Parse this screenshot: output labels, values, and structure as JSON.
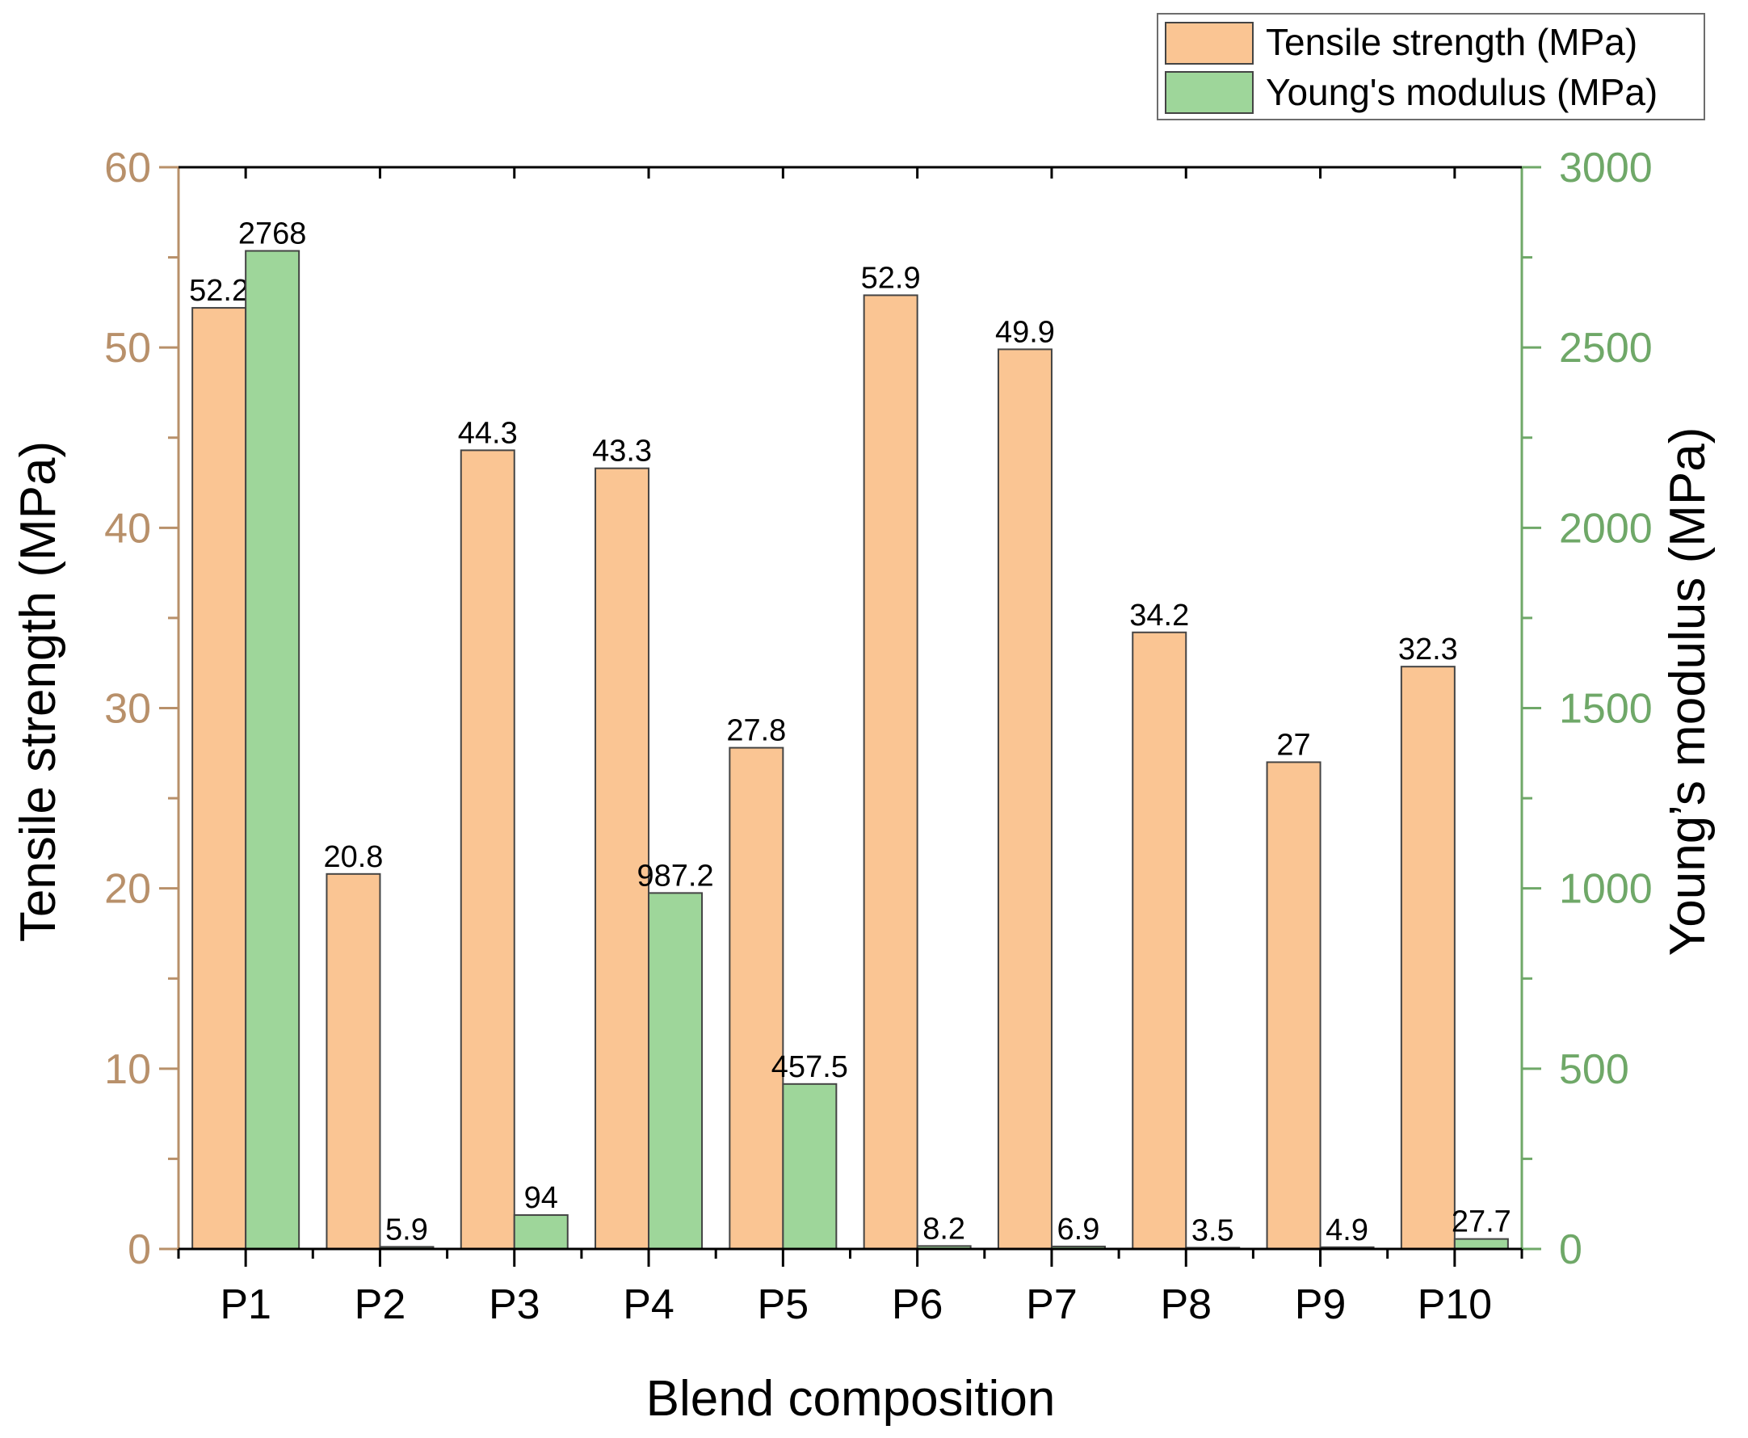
{
  "chart_data": {
    "type": "bar",
    "categories": [
      "P1",
      "P2",
      "P3",
      "P4",
      "P5",
      "P6",
      "P7",
      "P8",
      "P9",
      "P10"
    ],
    "series": [
      {
        "name": "Tensile strength (MPa)",
        "axis": "left",
        "color": "#FAC593",
        "values": [
          52.2,
          20.8,
          44.3,
          43.3,
          27.8,
          52.9,
          49.9,
          34.2,
          27,
          32.3
        ],
        "labels": [
          "52.2",
          "20.8",
          "44.3",
          "43.3",
          "27.8",
          "52.9",
          "49.9",
          "34.2",
          "27",
          "32.3"
        ]
      },
      {
        "name": "Young's modulus (MPa)",
        "axis": "right",
        "color": "#9ED69A",
        "values": [
          2768,
          5.9,
          94,
          987.2,
          457.5,
          8.2,
          6.9,
          3.5,
          4.9,
          27.7
        ],
        "labels": [
          "2768",
          "5.9",
          "94",
          "987.2",
          "457.5",
          "8.2",
          "6.9",
          "3.5",
          "4.9",
          "27.7"
        ]
      }
    ],
    "xlabel": "Blend composition",
    "ylabel_left": "Tensile strength (MPa)",
    "ylabel_right": "Young’s modulus (MPa)",
    "ylim_left": [
      0,
      60
    ],
    "ylim_right": [
      0,
      3000
    ],
    "yticks_left": [
      0,
      10,
      20,
      30,
      40,
      50,
      60
    ],
    "yticks_right": [
      0,
      500,
      1000,
      1500,
      2000,
      2500,
      3000
    ],
    "left_axis_color": "#B8906A",
    "right_axis_color": "#6FA868",
    "legend_position": "top-right",
    "grid": false
  }
}
